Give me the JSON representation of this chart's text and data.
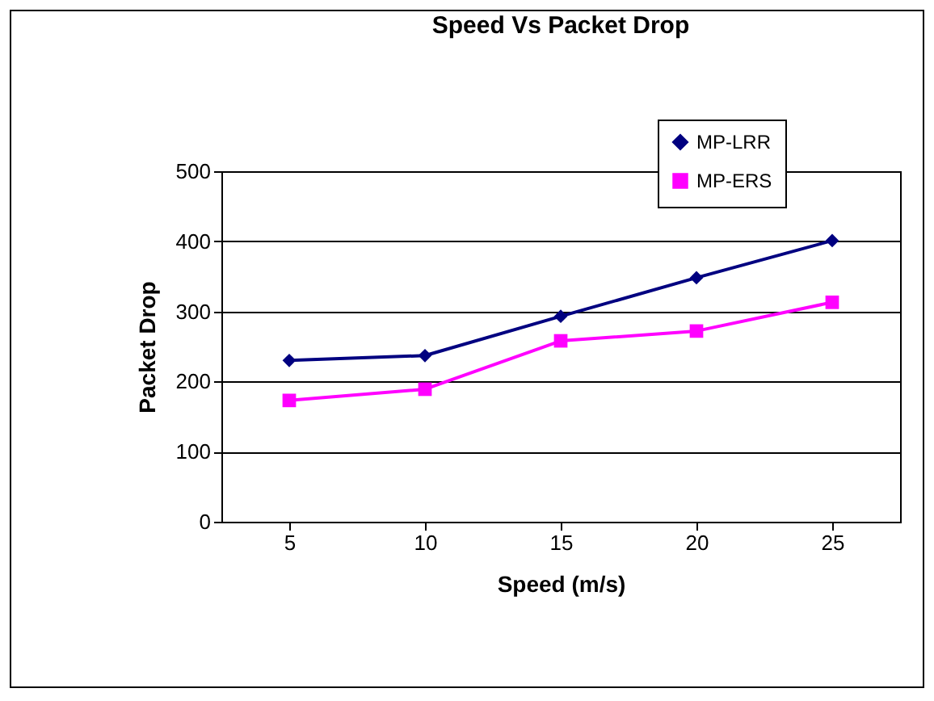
{
  "chart_data": {
    "type": "line",
    "title": "Speed Vs Packet Drop",
    "xlabel": "Speed (m/s)",
    "ylabel": "Packet Drop",
    "categories": [
      "5",
      "10",
      "15",
      "20",
      "25"
    ],
    "series": [
      {
        "name": "MP-LRR",
        "color": "#000080",
        "marker": "diamond",
        "values": [
          230,
          237,
          293,
          348,
          401
        ]
      },
      {
        "name": "MP-ERS",
        "color": "#ff00ff",
        "marker": "square",
        "values": [
          173,
          189,
          258,
          272,
          313
        ]
      }
    ],
    "ylim": [
      0,
      500
    ],
    "yticks": [
      0,
      100,
      200,
      300,
      400,
      500
    ],
    "grid": "y",
    "legend": "top right"
  }
}
